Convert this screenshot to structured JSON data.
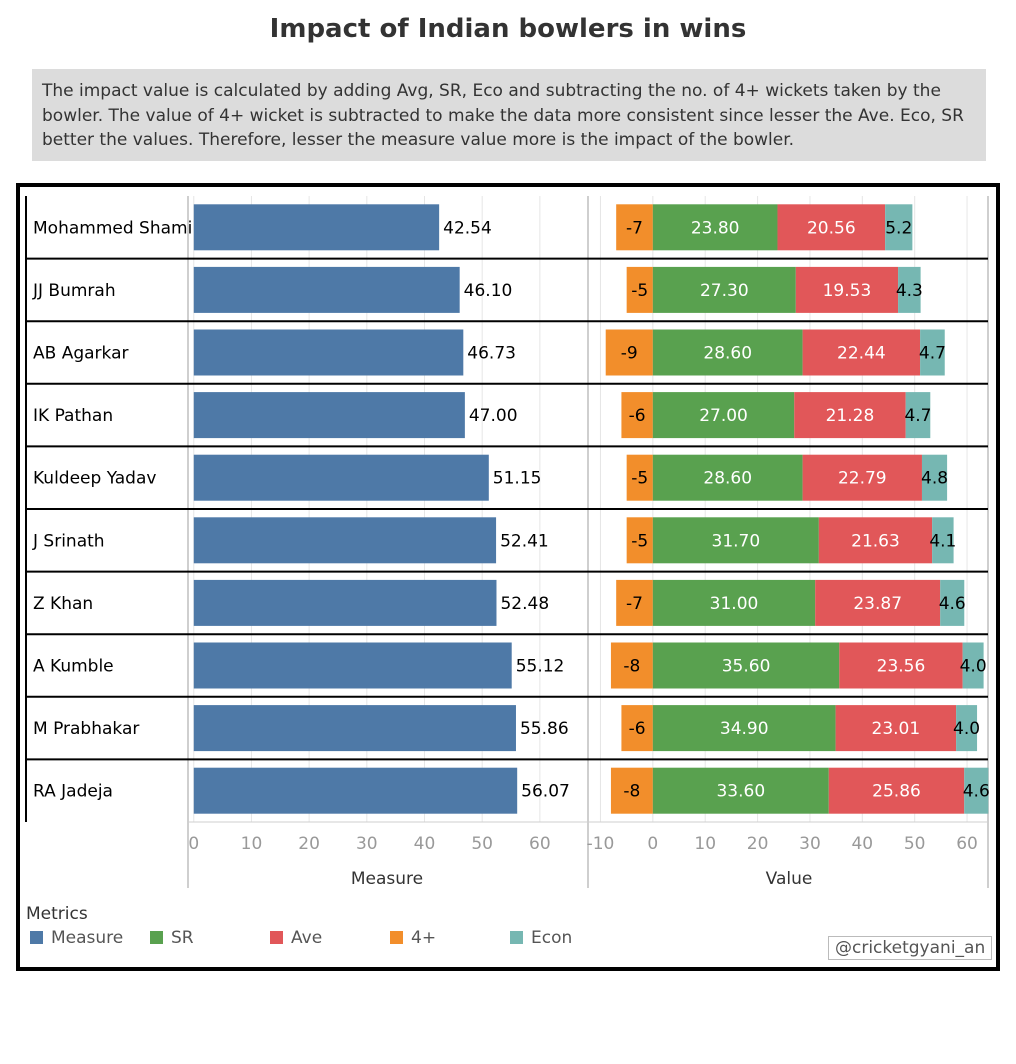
{
  "title": "Impact of Indian bowlers in wins",
  "description": "The impact value is calculated by adding Avg, SR, Eco and subtracting the no. of 4+ wickets taken by the bowler.  The value of 4+ wicket is subtracted to make the data more consistent since lesser the Ave. Eco, SR better the values. Therefore, lesser the measure value more is the impact of the bowler.",
  "watermark": "@cricketgyani_an",
  "legend": {
    "title": "Metrics",
    "items": [
      {
        "label": "Measure",
        "color": "#4e79a7"
      },
      {
        "label": "SR",
        "color": "#59a14f"
      },
      {
        "label": "Ave",
        "color": "#e15759"
      },
      {
        "label": "4+",
        "color": "#f28e2b"
      },
      {
        "label": "Econ",
        "color": "#76b7b2"
      }
    ]
  },
  "chart_data": {
    "type": "bar",
    "players": [
      "Mohammed Shami",
      "JJ Bumrah",
      "AB Agarkar",
      "IK Pathan",
      "Kuldeep Yadav",
      "J Srinath",
      "Z Khan",
      "A Kumble",
      "M Prabhakar",
      "RA Jadeja"
    ],
    "measure": {
      "axis_title": "Measure",
      "ticks": [
        0,
        10,
        20,
        30,
        40,
        50,
        60
      ],
      "xlim": [
        -1,
        68
      ],
      "values": [
        42.54,
        46.1,
        46.73,
        47.0,
        51.15,
        52.41,
        52.48,
        55.12,
        55.86,
        56.07
      ],
      "labels": [
        "42.54",
        "46.10",
        "46.73",
        "47.00",
        "51.15",
        "52.41",
        "52.48",
        "55.12",
        "55.86",
        "56.07"
      ]
    },
    "value": {
      "axis_title": "Value",
      "ticks": [
        -10,
        0,
        10,
        20,
        30,
        40,
        50,
        60
      ],
      "xlim": [
        -12,
        64
      ],
      "series": [
        {
          "name": "4+",
          "values": [
            -7,
            -5,
            -9,
            -6,
            -5,
            -5,
            -7,
            -8,
            -6,
            -8
          ],
          "labels": [
            "-7",
            "-5",
            "-9",
            "-6",
            "-5",
            "-5",
            "-7",
            "-8",
            "-6",
            "-8"
          ]
        },
        {
          "name": "SR",
          "values": [
            23.8,
            27.3,
            28.6,
            27.0,
            28.6,
            31.7,
            31.0,
            35.6,
            34.9,
            33.6
          ],
          "labels": [
            "23.80",
            "27.30",
            "28.60",
            "27.00",
            "28.60",
            "31.70",
            "31.00",
            "35.60",
            "34.90",
            "33.60"
          ]
        },
        {
          "name": "Ave",
          "values": [
            20.56,
            19.53,
            22.44,
            21.28,
            22.79,
            21.63,
            23.87,
            23.56,
            23.01,
            25.86
          ],
          "labels": [
            "20.56",
            "19.53",
            "22.44",
            "21.28",
            "22.79",
            "21.63",
            "23.87",
            "23.56",
            "23.01",
            "25.86"
          ]
        },
        {
          "name": "Econ",
          "values": [
            5.2,
            4.3,
            4.7,
            4.7,
            4.8,
            4.1,
            4.6,
            4.0,
            4.0,
            4.6
          ],
          "labels": [
            "5.2",
            "4.3",
            "4.7",
            "4.7",
            "4.8",
            "4.1",
            "4.6",
            "4.0",
            "4.0",
            "4.6"
          ]
        }
      ]
    }
  }
}
